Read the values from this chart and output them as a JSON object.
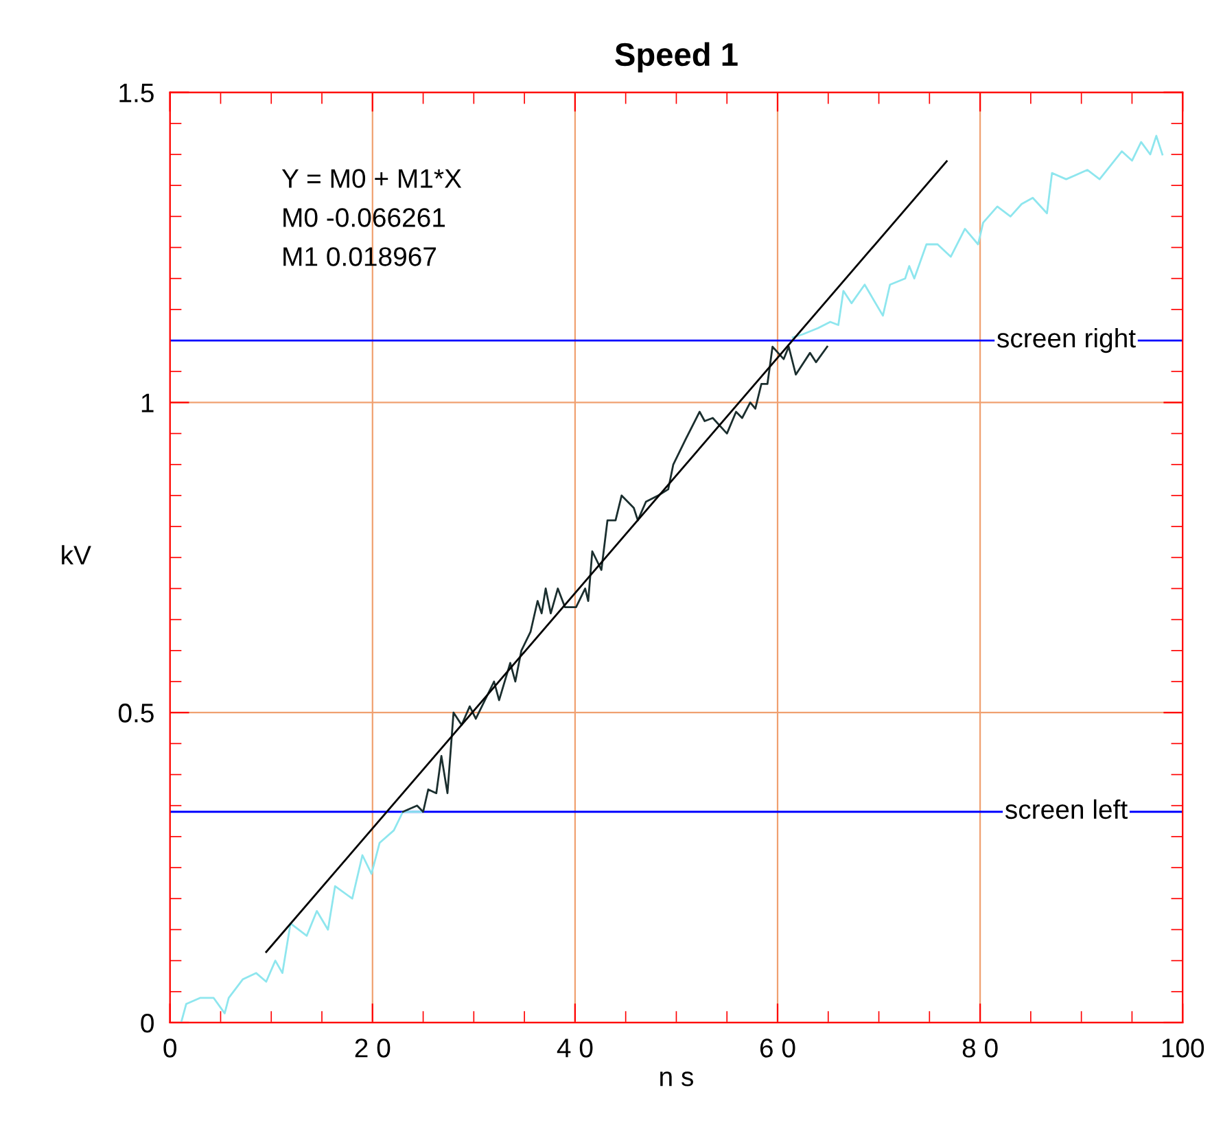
{
  "chart_data": {
    "type": "line",
    "title": "Speed 1",
    "xlabel": "n s",
    "ylabel": "kV",
    "xlim": [
      0,
      100
    ],
    "ylim": [
      0,
      1.5
    ],
    "xticks": [
      0,
      {
        "value": 20,
        "label": "2 0"
      },
      {
        "value": 40,
        "label": "4 0"
      },
      {
        "value": 60,
        "label": "6 0"
      },
      {
        "value": 80,
        "label": "8 0"
      },
      100
    ],
    "yticks": [
      0,
      0.5,
      1,
      1.5
    ],
    "grid": true,
    "annotations": [
      "Y = M0 + M1*X",
      "M0 -0.066261",
      "M1 0.018967"
    ],
    "ref_lines": [
      {
        "axis": "y",
        "value": 1.1,
        "label": "screen right",
        "color": "#0000ff"
      },
      {
        "axis": "y",
        "value": 0.34,
        "label": "screen left",
        "color": "#0000ff"
      }
    ],
    "series": [
      {
        "color": "#8ee6ee",
        "x": [
          1.1,
          1.6,
          3,
          4.3,
          5.4,
          5.8,
          7.2,
          8.5,
          9.5,
          10.4,
          11.1,
          11.9,
          13.5,
          14.5,
          15.6,
          16.3,
          18,
          19,
          19.9,
          20.7,
          22.1,
          23,
          24.8,
          40,
          61.5,
          62.5,
          64,
          65.2,
          66,
          66.5,
          67.3,
          68.6,
          70.4,
          71.1,
          72.6,
          73,
          73.5,
          74.7,
          75.8,
          77.1,
          78.5,
          79.8,
          80.3,
          81.7,
          83,
          84.1,
          85.2,
          86.6,
          87.1,
          88.5,
          90.6,
          91.8,
          94,
          95,
          95.9,
          96.8,
          97.4,
          98
        ],
        "values": [
          0,
          0.03,
          0.04,
          0.04,
          0.015,
          0.04,
          0.07,
          0.08,
          0.066,
          0.1,
          0.08,
          0.16,
          0.14,
          0.18,
          0.15,
          0.22,
          0.2,
          0.27,
          0.24,
          0.29,
          0.31,
          0.34,
          0.34,
          null,
          1.105,
          1.11,
          1.12,
          1.13,
          1.125,
          1.18,
          1.16,
          1.19,
          1.14,
          1.19,
          1.2,
          1.22,
          1.2,
          1.255,
          1.255,
          1.235,
          1.28,
          1.255,
          1.29,
          1.316,
          1.3,
          1.32,
          1.33,
          1.305,
          1.37,
          1.36,
          1.375,
          1.36,
          1.405,
          1.39,
          1.42,
          1.4,
          1.43,
          1.4
        ]
      },
      {
        "color": "#1a2e2e",
        "x": [
          23,
          24.4,
          25,
          25.5,
          26.3,
          26.8,
          27.4,
          28,
          28.8,
          29.6,
          30.2,
          32,
          32.5,
          33.6,
          34.1,
          34.7,
          35.6,
          36.3,
          36.7,
          37.1,
          37.6,
          38.3,
          39,
          40.1,
          41,
          41.3,
          41.7,
          42.6,
          43.2,
          44,
          44.6,
          45.8,
          46.2,
          47,
          48.2,
          49.2,
          49.7,
          50.9,
          52.3,
          52.8,
          53.6,
          55,
          55.9,
          56.5,
          57.3,
          57.8,
          58.4,
          59,
          59.5,
          60.6,
          61.1,
          61.8,
          63.2,
          63.8,
          64.9
        ],
        "values": [
          0.34,
          0.35,
          0.34,
          0.376,
          0.37,
          0.43,
          0.37,
          0.5,
          0.48,
          0.51,
          0.49,
          0.55,
          0.52,
          0.58,
          0.55,
          0.6,
          0.63,
          0.68,
          0.66,
          0.7,
          0.66,
          0.7,
          0.67,
          0.67,
          0.7,
          0.68,
          0.76,
          0.73,
          0.81,
          0.81,
          0.85,
          0.83,
          0.81,
          0.84,
          0.85,
          0.86,
          0.9,
          0.94,
          0.985,
          0.97,
          0.975,
          0.95,
          0.985,
          0.975,
          1.0,
          0.99,
          1.03,
          1.03,
          1.09,
          1.07,
          1.09,
          1.045,
          1.08,
          1.065,
          1.09
        ]
      },
      {
        "color": "#000000",
        "x": [
          9.5,
          76.7
        ],
        "values": [
          0.114,
          1.389
        ]
      }
    ]
  }
}
